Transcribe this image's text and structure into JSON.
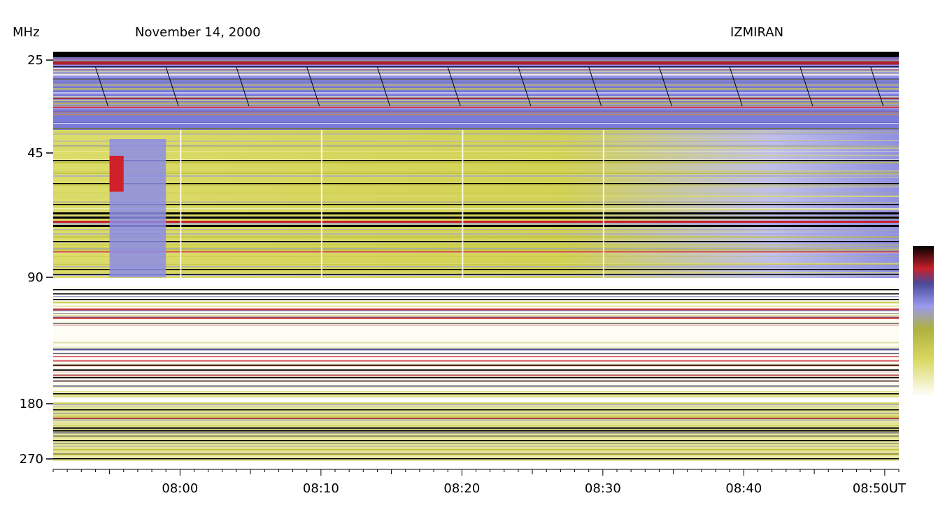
{
  "header": {
    "units": "MHz",
    "date": "November 14, 2000",
    "observatory": "IZMIRAN"
  },
  "chart_data": {
    "type": "heatmap",
    "title": "November 14, 2000",
    "ylabel": "MHz",
    "xlabel": "",
    "y_ticks": [
      "25",
      "45",
      "90",
      "180",
      "270"
    ],
    "x_ticks": [
      "08:00",
      "08:10",
      "08:20",
      "08:30",
      "08:40",
      "08:50UT"
    ],
    "x_range": [
      "07:51",
      "08:51"
    ],
    "y_range": [
      25,
      270
    ],
    "y_scale": "log",
    "colorscale": [
      "#ffffff",
      "#c9c93a",
      "#a0a0ff",
      "#5858b8",
      "#c8202a",
      "#000000"
    ],
    "legend_placement": "right",
    "features": [
      {
        "kind": "type III/IV burst",
        "time_start": "07:55",
        "time_end": "07:59",
        "freq_low": 45,
        "freq_high": 90
      },
      {
        "kind": "bright core",
        "time_start": "07:55",
        "time_end": "07:56",
        "freq_low": 45,
        "freq_high": 55
      }
    ]
  }
}
